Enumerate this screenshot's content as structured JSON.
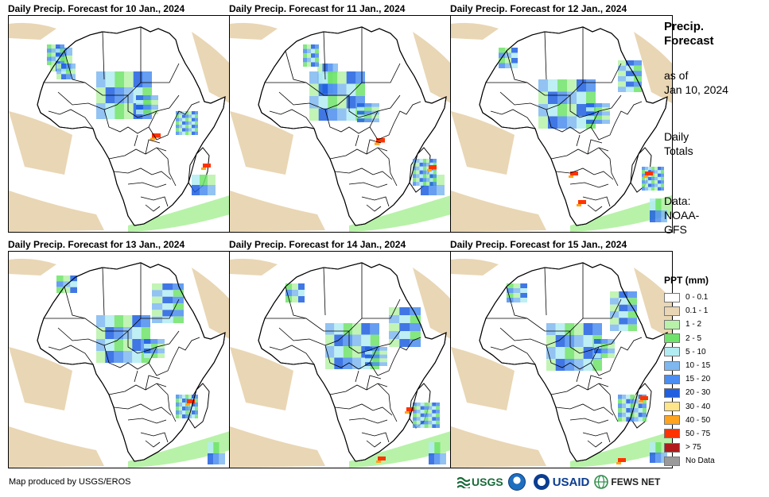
{
  "panels": [
    {
      "title": "Daily Precip. Forecast for 10 Jan., 2024"
    },
    {
      "title": "Daily Precip. Forecast for 11 Jan., 2024"
    },
    {
      "title": "Daily Precip. Forecast for 12 Jan., 2024"
    },
    {
      "title": "Daily Precip. Forecast for 13 Jan., 2024"
    },
    {
      "title": "Daily Precip. Forecast for 14 Jan., 2024"
    },
    {
      "title": "Daily Precip. Forecast for 15 Jan., 2024"
    }
  ],
  "side": {
    "title_line1": "Precip.",
    "title_line2": "Forecast",
    "asof_line1": "as of",
    "asof_line2": "Jan 10, 2024",
    "totals_line1": "Daily",
    "totals_line2": "Totals",
    "data_line1": "Data:",
    "data_line2": "NOAA-",
    "data_line3": "GFS"
  },
  "legend": {
    "title": "PPT (mm)",
    "items": [
      {
        "label": "0 - 0.1",
        "color": "#ffffff"
      },
      {
        "label": "0.1 - 1",
        "color": "#e9d6b4"
      },
      {
        "label": "1 - 2",
        "color": "#b7f2a8"
      },
      {
        "label": "2 - 5",
        "color": "#6ee36a"
      },
      {
        "label": "5 - 10",
        "color": "#b3ecf2"
      },
      {
        "label": "10 - 15",
        "color": "#7fb8f0"
      },
      {
        "label": "15 - 20",
        "color": "#4b8df0"
      },
      {
        "label": "20 - 30",
        "color": "#1f5fe0"
      },
      {
        "label": "30 - 40",
        "color": "#ffe58a"
      },
      {
        "label": "40 - 50",
        "color": "#ffa41f"
      },
      {
        "label": "50 - 75",
        "color": "#ff3300"
      },
      {
        "label": "> 75",
        "color": "#b01a1a"
      },
      {
        "label": "No Data",
        "color": "#9a9a9a"
      }
    ]
  },
  "credit": "Map produced by USGS/EROS",
  "logos": {
    "usgs": "USGS",
    "usaid": "USAID",
    "fewsnet": "FEWS NET"
  }
}
